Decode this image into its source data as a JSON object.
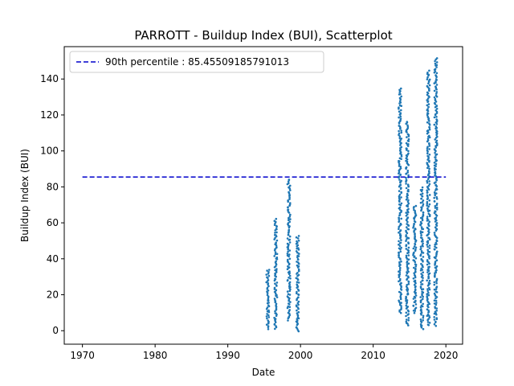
{
  "chart_data": {
    "type": "scatter",
    "title": "PARROTT - Buildup Index (BUI), Scatterplot",
    "xlabel": "Date",
    "ylabel": "Buildup Index (BUI)",
    "xlim": [
      1967.5,
      2022.3
    ],
    "ylim": [
      -7.5,
      158
    ],
    "xticks": [
      1970,
      1980,
      1990,
      2000,
      2010,
      2020
    ],
    "xtick_labels": [
      "1970",
      "1980",
      "1990",
      "2000",
      "2010",
      "2020"
    ],
    "yticks": [
      0,
      20,
      40,
      60,
      80,
      100,
      120,
      140
    ],
    "ytick_labels": [
      "0",
      "20",
      "40",
      "60",
      "80",
      "100",
      "120",
      "140"
    ],
    "grid": false,
    "legend": {
      "placement": "top-left",
      "entries": [
        "90th percentile : 85.45509185791013"
      ]
    },
    "reference_line": {
      "name": "90th percentile : 85.45509185791013",
      "y": 85.45509185791013,
      "x_range": [
        1970,
        2020
      ],
      "style": "dashed",
      "color": "#0000cc"
    },
    "series": [
      {
        "color": "#1f77b4",
        "clusters": [
          {
            "x": 1995.5,
            "width": 0.4,
            "ymin": 1,
            "ymax": 34
          },
          {
            "x": 1996.6,
            "width": 0.4,
            "ymin": 1,
            "ymax": 62
          },
          {
            "x": 1998.4,
            "width": 0.4,
            "ymin": 6,
            "ymax": 85
          },
          {
            "x": 1999.6,
            "width": 0.4,
            "ymin": 0,
            "ymax": 53
          },
          {
            "x": 2013.7,
            "width": 0.4,
            "ymin": 10,
            "ymax": 135
          },
          {
            "x": 2014.7,
            "width": 0.4,
            "ymin": 3,
            "ymax": 117
          },
          {
            "x": 2015.7,
            "width": 0.4,
            "ymin": 10,
            "ymax": 70
          },
          {
            "x": 2016.7,
            "width": 0.4,
            "ymin": 1,
            "ymax": 80
          },
          {
            "x": 2017.6,
            "width": 0.4,
            "ymin": 3,
            "ymax": 145
          },
          {
            "x": 2018.6,
            "width": 0.4,
            "ymin": 3,
            "ymax": 152
          }
        ]
      }
    ]
  }
}
